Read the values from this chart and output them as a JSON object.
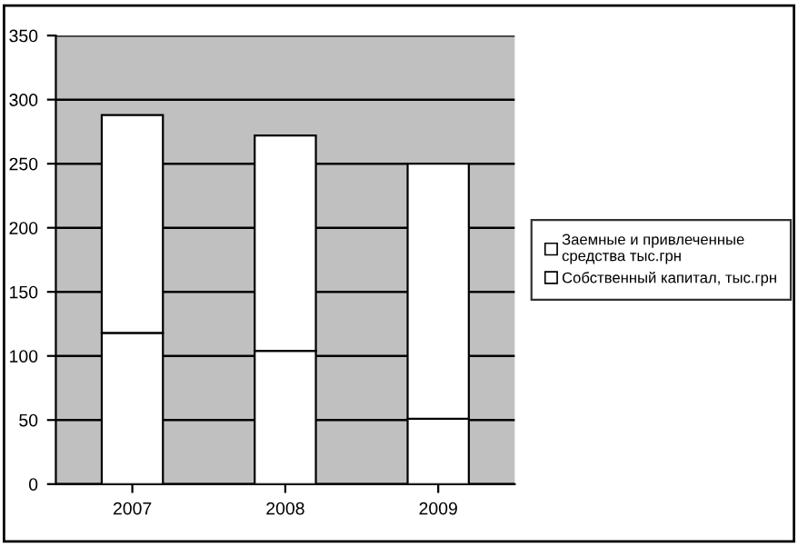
{
  "chart_data": {
    "type": "bar",
    "stacked": true,
    "categories": [
      "2007",
      "2008",
      "2009"
    ],
    "series": [
      {
        "name": "Собственный капитал, тыс.грн",
        "color": "#ffffff",
        "values": [
          118,
          104,
          51
        ]
      },
      {
        "name": "Заемные и привлеченные средства тыс.грн",
        "color": "#ffffff",
        "values": [
          170,
          168,
          199
        ]
      }
    ],
    "ylim": [
      0,
      350
    ],
    "yticks": [
      0,
      50,
      100,
      150,
      200,
      250,
      300,
      350
    ],
    "grid": "y",
    "legend": "right"
  }
}
